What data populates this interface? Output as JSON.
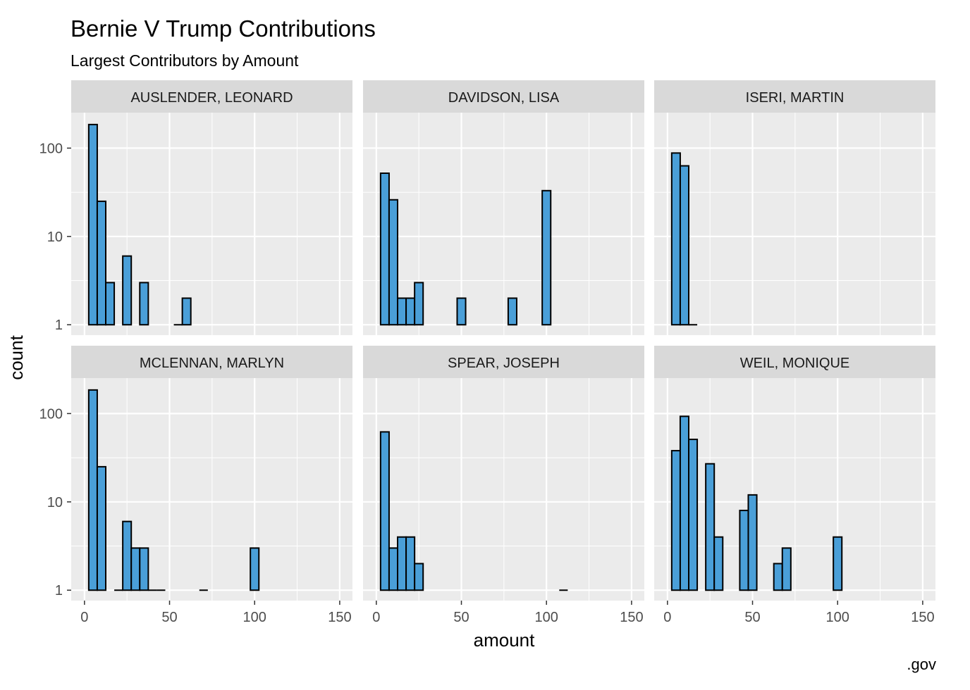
{
  "chart_data": {
    "type": "bar",
    "title": "Bernie V Trump Contributions",
    "subtitle": "Largest Contributors by Amount",
    "xlabel": "amount",
    "ylabel": "count",
    "caption": ".gov",
    "x_ticks": [
      0,
      50,
      100,
      150
    ],
    "y_ticks": [
      1,
      10,
      100
    ],
    "y_scale": "log10",
    "grid": true,
    "colors": {
      "fill": "#4a9fd8",
      "outline": "#000000",
      "panel": "#ebebeb",
      "strip": "#d9d9d9",
      "grid": "#ffffff"
    },
    "panels": [
      {
        "name": "AUSLENDER, LEONARD",
        "bins": [
          {
            "x": 5,
            "count": 185
          },
          {
            "x": 10,
            "count": 25
          },
          {
            "x": 15,
            "count": 3
          },
          {
            "x": 25,
            "count": 6
          },
          {
            "x": 35,
            "count": 3
          },
          {
            "x": 55,
            "count": 1
          },
          {
            "x": 60,
            "count": 2
          }
        ]
      },
      {
        "name": "DAVIDSON, LISA",
        "bins": [
          {
            "x": 5,
            "count": 52
          },
          {
            "x": 10,
            "count": 26
          },
          {
            "x": 15,
            "count": 2
          },
          {
            "x": 20,
            "count": 2
          },
          {
            "x": 25,
            "count": 3
          },
          {
            "x": 50,
            "count": 2
          },
          {
            "x": 80,
            "count": 2
          },
          {
            "x": 100,
            "count": 33
          }
        ]
      },
      {
        "name": "ISERI, MARTIN",
        "bins": [
          {
            "x": 5,
            "count": 88
          },
          {
            "x": 10,
            "count": 63
          },
          {
            "x": 15,
            "count": 1
          }
        ]
      },
      {
        "name": "MCLENNAN, MARLYN",
        "bins": [
          {
            "x": 5,
            "count": 185
          },
          {
            "x": 10,
            "count": 25
          },
          {
            "x": 20,
            "count": 1
          },
          {
            "x": 25,
            "count": 6
          },
          {
            "x": 30,
            "count": 3
          },
          {
            "x": 35,
            "count": 3
          },
          {
            "x": 40,
            "count": 1
          },
          {
            "x": 45,
            "count": 1
          },
          {
            "x": 70,
            "count": 1
          },
          {
            "x": 100,
            "count": 3
          }
        ]
      },
      {
        "name": "SPEAR, JOSEPH",
        "bins": [
          {
            "x": 5,
            "count": 62
          },
          {
            "x": 10,
            "count": 3
          },
          {
            "x": 15,
            "count": 4
          },
          {
            "x": 20,
            "count": 4
          },
          {
            "x": 25,
            "count": 2
          },
          {
            "x": 110,
            "count": 1
          }
        ]
      },
      {
        "name": "WEIL, MONIQUE",
        "bins": [
          {
            "x": 5,
            "count": 38
          },
          {
            "x": 10,
            "count": 93
          },
          {
            "x": 15,
            "count": 51
          },
          {
            "x": 25,
            "count": 27
          },
          {
            "x": 30,
            "count": 4
          },
          {
            "x": 45,
            "count": 8
          },
          {
            "x": 50,
            "count": 12
          },
          {
            "x": 65,
            "count": 2
          },
          {
            "x": 70,
            "count": 3
          },
          {
            "x": 100,
            "count": 4
          }
        ]
      }
    ]
  }
}
